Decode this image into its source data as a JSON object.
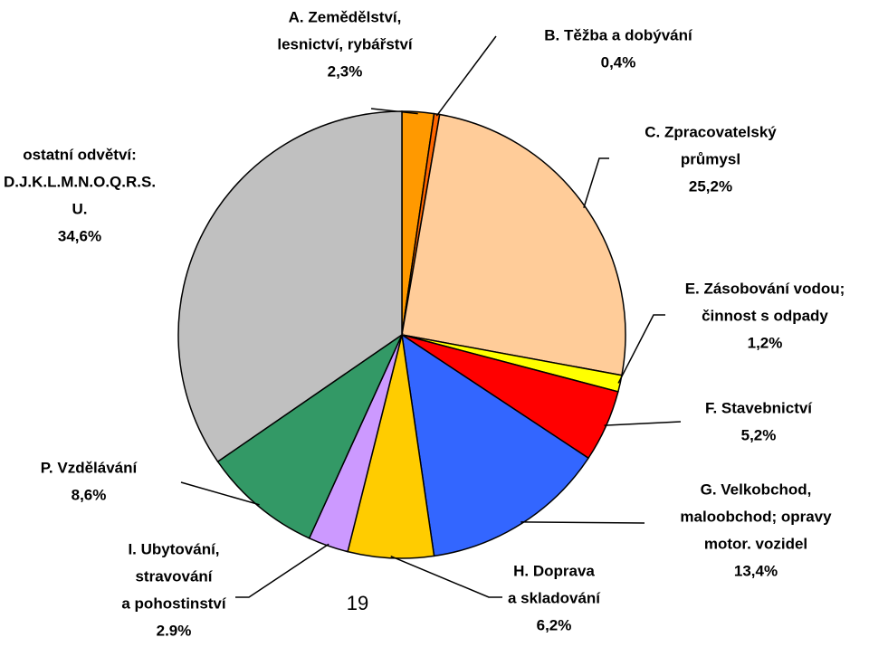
{
  "chart_data": {
    "type": "pie",
    "categories": [
      [
        "A. Zemědělství,",
        "lesnictví, rybářství"
      ],
      [
        "B. Těžba a dobývání"
      ],
      [
        "C. Zpracovatelský",
        "průmysl"
      ],
      [
        "E. Zásobování vodou;",
        "činnost s odpady"
      ],
      [
        "F. Stavebnictví"
      ],
      [
        "G. Velkobchod,",
        "maloobchod; opravy",
        "motor. vozidel"
      ],
      [
        "H. Doprava",
        "a skladování"
      ],
      [
        "I. Ubytování,",
        "stravování",
        "a pohostinství"
      ],
      [
        "P. Vzdělávání"
      ],
      [
        "ostatní odvětví:",
        "D.J.K.L.M.N.O.Q.R.S.",
        "U."
      ]
    ],
    "values": [
      2.3,
      0.4,
      25.2,
      1.2,
      5.2,
      13.4,
      6.2,
      2.9,
      8.6,
      34.6
    ],
    "value_labels": [
      "2,3%",
      "0,4%",
      "25,2%",
      "1,2%",
      "5,2%",
      "13,4%",
      "6,2%",
      "2.9%",
      "8,6%",
      "34,6%"
    ],
    "colors": [
      "#ff9900",
      "#ff6600",
      "#ffcc99",
      "#ffff00",
      "#ff0000",
      "#3366ff",
      "#ffcc00",
      "#cc99ff",
      "#339966",
      "#c0c0c0"
    ]
  },
  "page_number": "19"
}
